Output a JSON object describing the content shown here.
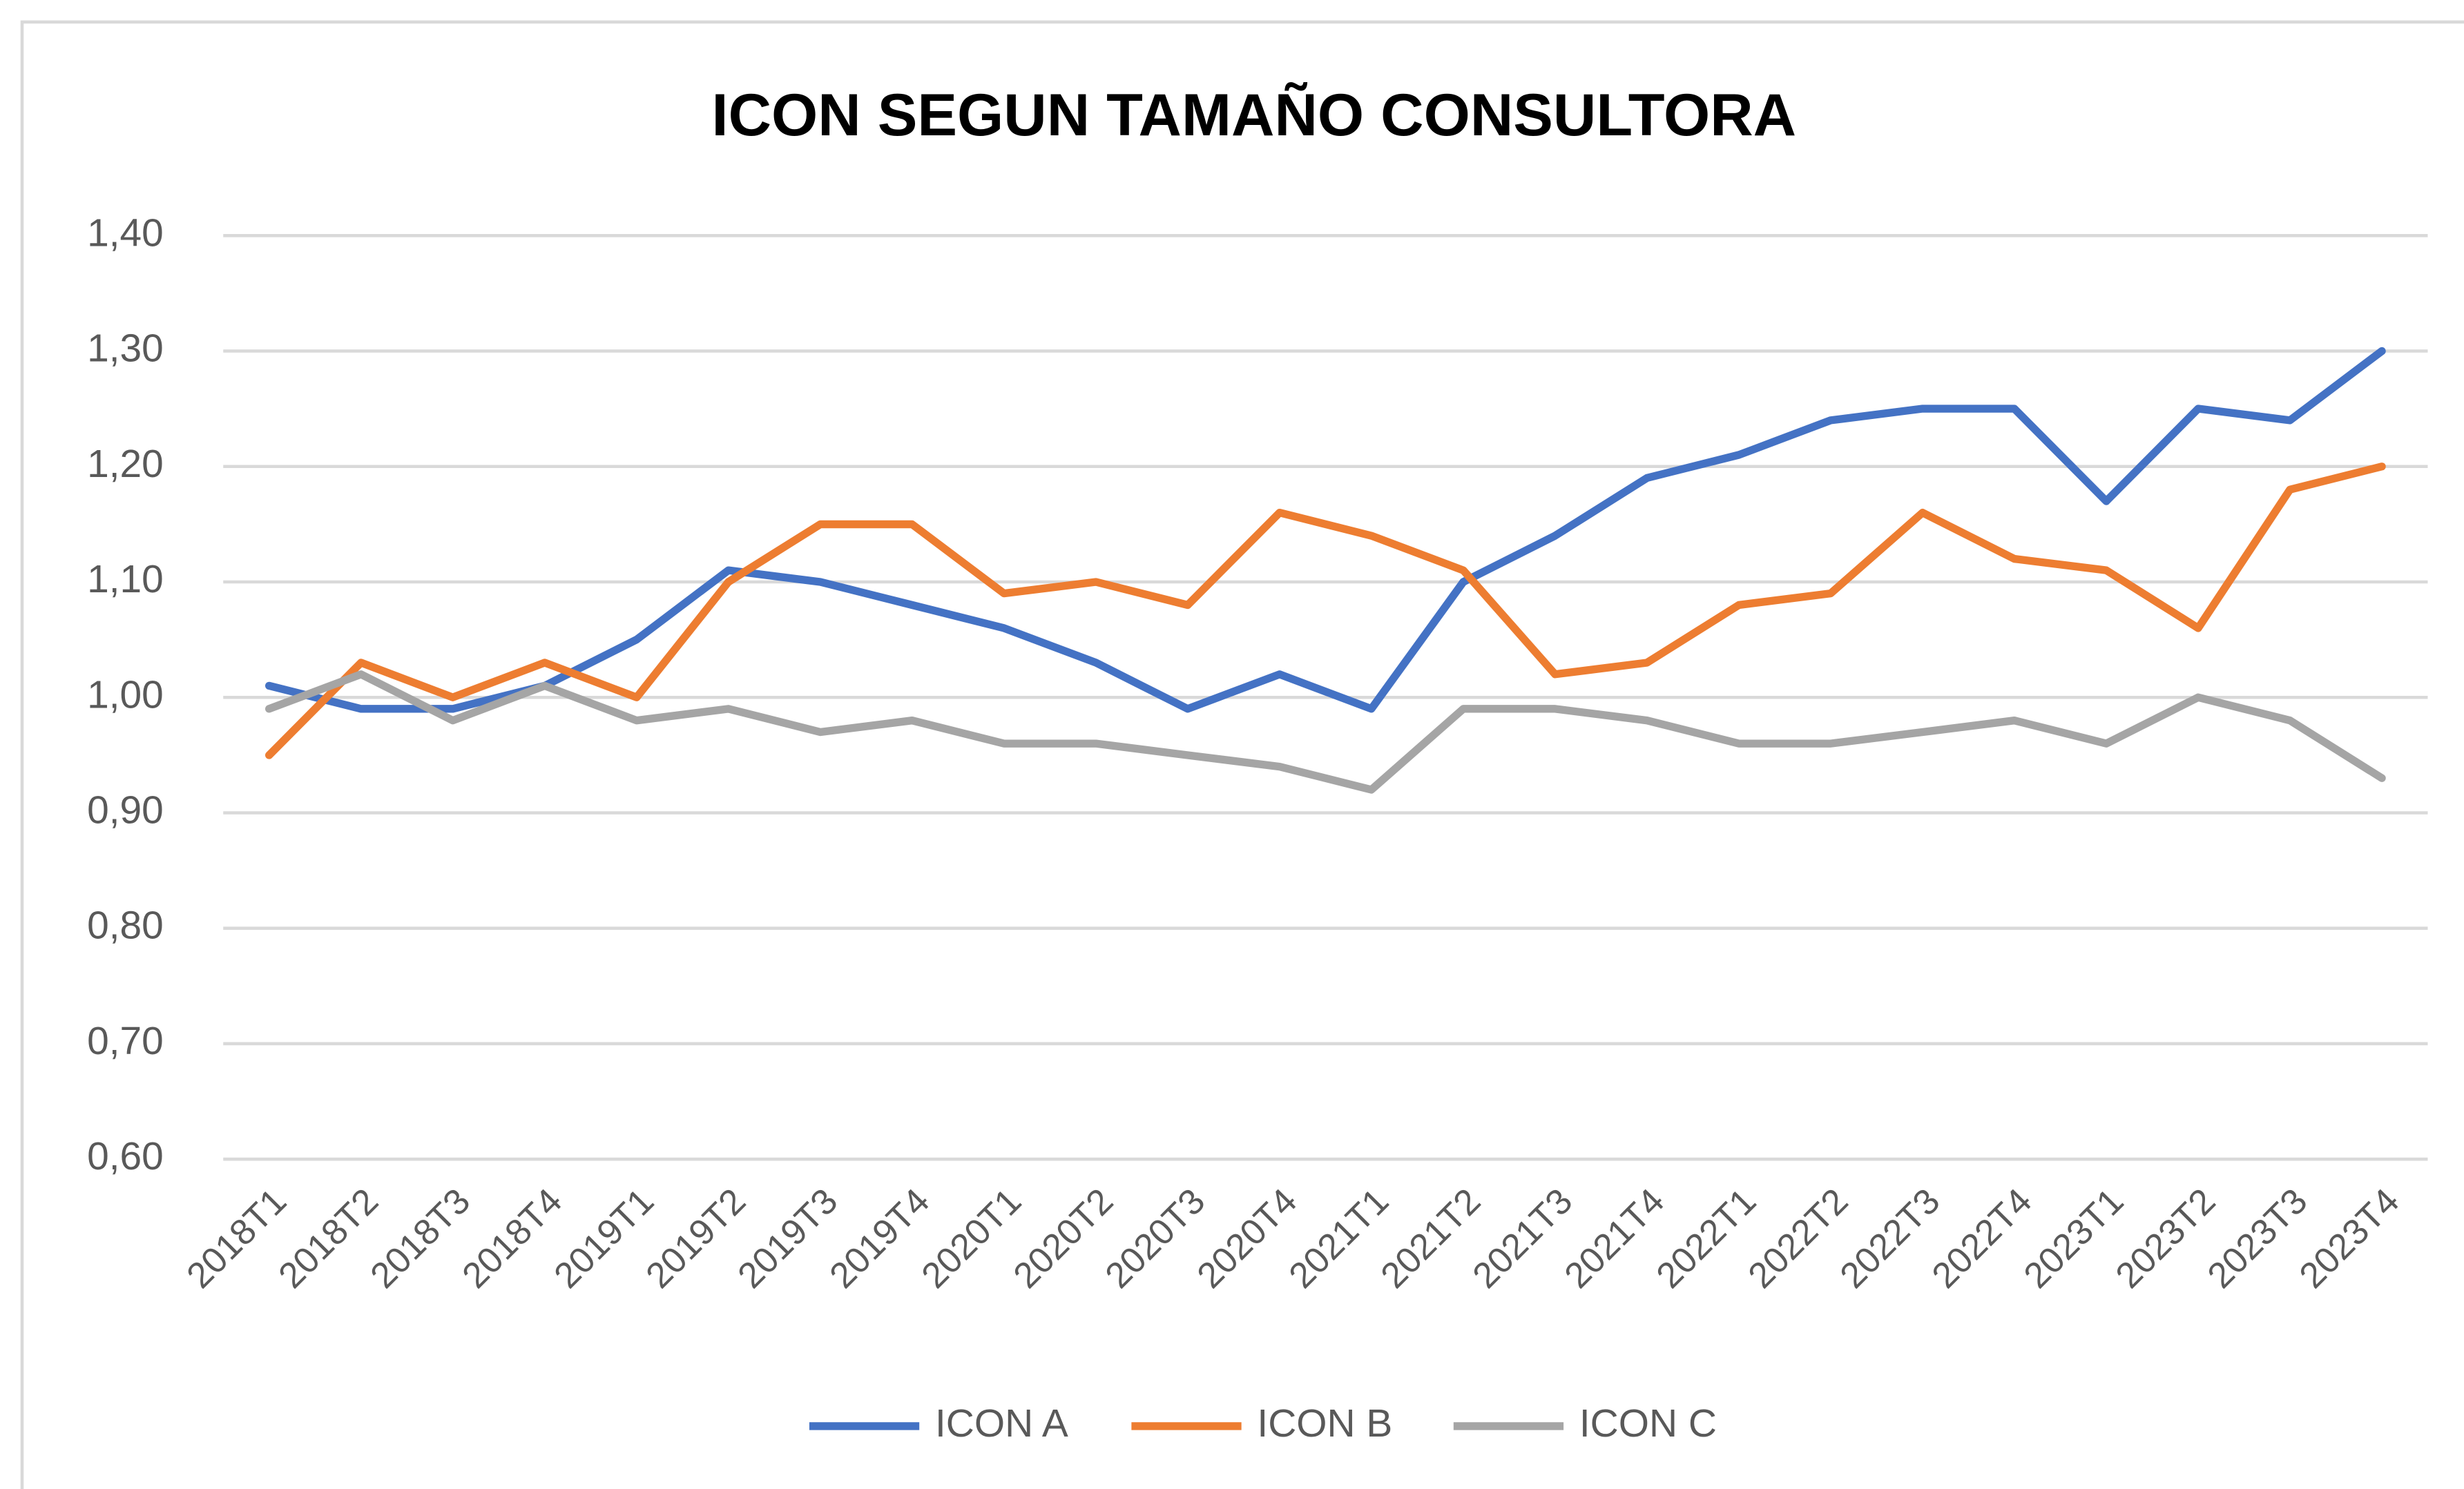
{
  "chart_data": {
    "type": "line",
    "title": "ICON SEGUN TAMAÑO CONSULTORA",
    "categories": [
      "2018T1",
      "2018T2",
      "2018T3",
      "2018T4",
      "2019T1",
      "2019T2",
      "2019T3",
      "2019T4",
      "2020T1",
      "2020T2",
      "2020T3",
      "2020T4",
      "2021T1",
      "2021T2",
      "2021T3",
      "2021T4",
      "2022T1",
      "2022T2",
      "2022T3",
      "2022T4",
      "2023T1",
      "2023T2",
      "2023T3",
      "2023T4"
    ],
    "series": [
      {
        "name": "ICON A",
        "color": "#4472c4",
        "values": [
          1.01,
          0.99,
          0.99,
          1.01,
          1.05,
          1.11,
          1.1,
          1.08,
          1.06,
          1.03,
          0.99,
          1.02,
          0.99,
          1.1,
          1.14,
          1.19,
          1.21,
          1.24,
          1.25,
          1.25,
          1.17,
          1.25,
          1.24,
          1.3
        ]
      },
      {
        "name": "ICON B",
        "color": "#ed7d31",
        "values": [
          0.95,
          1.03,
          1.0,
          1.03,
          1.0,
          1.1,
          1.15,
          1.15,
          1.09,
          1.1,
          1.08,
          1.16,
          1.14,
          1.11,
          1.02,
          1.03,
          1.08,
          1.09,
          1.16,
          1.12,
          1.11,
          1.06,
          1.18,
          1.2
        ]
      },
      {
        "name": "ICON C",
        "color": "#a5a5a5",
        "values": [
          0.99,
          1.02,
          0.98,
          1.01,
          0.98,
          0.99,
          0.97,
          0.98,
          0.96,
          0.96,
          0.95,
          0.94,
          0.92,
          0.99,
          0.99,
          0.98,
          0.96,
          0.96,
          0.97,
          0.98,
          0.96,
          1.0,
          0.98,
          0.93
        ]
      }
    ],
    "ylim": [
      0.6,
      1.4
    ],
    "yticks": [
      {
        "value": 0.6,
        "label": "0,60"
      },
      {
        "value": 0.7,
        "label": "0,70"
      },
      {
        "value": 0.8,
        "label": "0,80"
      },
      {
        "value": 0.9,
        "label": "0,90"
      },
      {
        "value": 1.0,
        "label": "1,00"
      },
      {
        "value": 1.1,
        "label": "1,10"
      },
      {
        "value": 1.2,
        "label": "1,20"
      },
      {
        "value": 1.3,
        "label": "1,30"
      },
      {
        "value": 1.4,
        "label": "1,40"
      }
    ],
    "grid": true,
    "legend": "bottom"
  }
}
